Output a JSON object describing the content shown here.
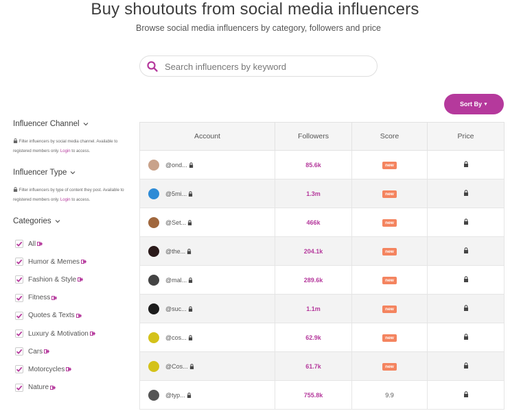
{
  "header": {
    "title": "Buy shoutouts from social media influencers",
    "subtitle": "Browse social media influencers by category, followers and price"
  },
  "search": {
    "placeholder": "Search influencers by keyword",
    "value": ""
  },
  "sort": {
    "label": "Sort By"
  },
  "sidebar": {
    "channel": {
      "heading": "Influencer Channel",
      "note_before": "Filter influencers by social media channel. Available to registered members only.",
      "login": "Login",
      "note_after": "to access."
    },
    "type": {
      "heading": "Influencer Type",
      "note_before": "Filter influencers by type of content they post. Available to registered members only.",
      "login": "Login",
      "note_after": "to access."
    },
    "categories": {
      "heading": "Categories",
      "items": [
        {
          "label": "All"
        },
        {
          "label": "Humor & Memes"
        },
        {
          "label": "Fashion & Style"
        },
        {
          "label": "Fitness"
        },
        {
          "label": "Quotes & Texts"
        },
        {
          "label": "Luxury & Motivation"
        },
        {
          "label": "Cars"
        },
        {
          "label": "Motorcycles"
        },
        {
          "label": "Nature"
        }
      ]
    }
  },
  "table": {
    "headers": {
      "account": "Account",
      "followers": "Followers",
      "score": "Score",
      "price": "Price"
    },
    "rows": [
      {
        "handle": "@ond...",
        "followers": "85.6k",
        "score": "new",
        "avatar_color": "#c9a28a"
      },
      {
        "handle": "@5mi...",
        "followers": "1.3m",
        "score": "new",
        "avatar_color": "#2e8bd6"
      },
      {
        "handle": "@Set...",
        "followers": "466k",
        "score": "new",
        "avatar_color": "#a0673d"
      },
      {
        "handle": "@the...",
        "followers": "204.1k",
        "score": "new",
        "avatar_color": "#2a1a1a"
      },
      {
        "handle": "@mal...",
        "followers": "289.6k",
        "score": "new",
        "avatar_color": "#444444"
      },
      {
        "handle": "@suc...",
        "followers": "1.1m",
        "score": "new",
        "avatar_color": "#1c1c1c"
      },
      {
        "handle": "@cos...",
        "followers": "62.9k",
        "score": "new",
        "avatar_color": "#d4c21a"
      },
      {
        "handle": "@Cos...",
        "followers": "61.7k",
        "score": "new",
        "avatar_color": "#d4c21a"
      },
      {
        "handle": "@typ...",
        "followers": "755.8k",
        "score": "9.9",
        "avatar_color": "#555555"
      }
    ]
  },
  "colors": {
    "accent": "#b5399c",
    "badge": "#f4845f"
  },
  "icons": {
    "search": "search-icon",
    "lock": "lock-icon",
    "external": "external-link-icon",
    "check": "check-icon",
    "chevron": "chevron-down-icon"
  }
}
